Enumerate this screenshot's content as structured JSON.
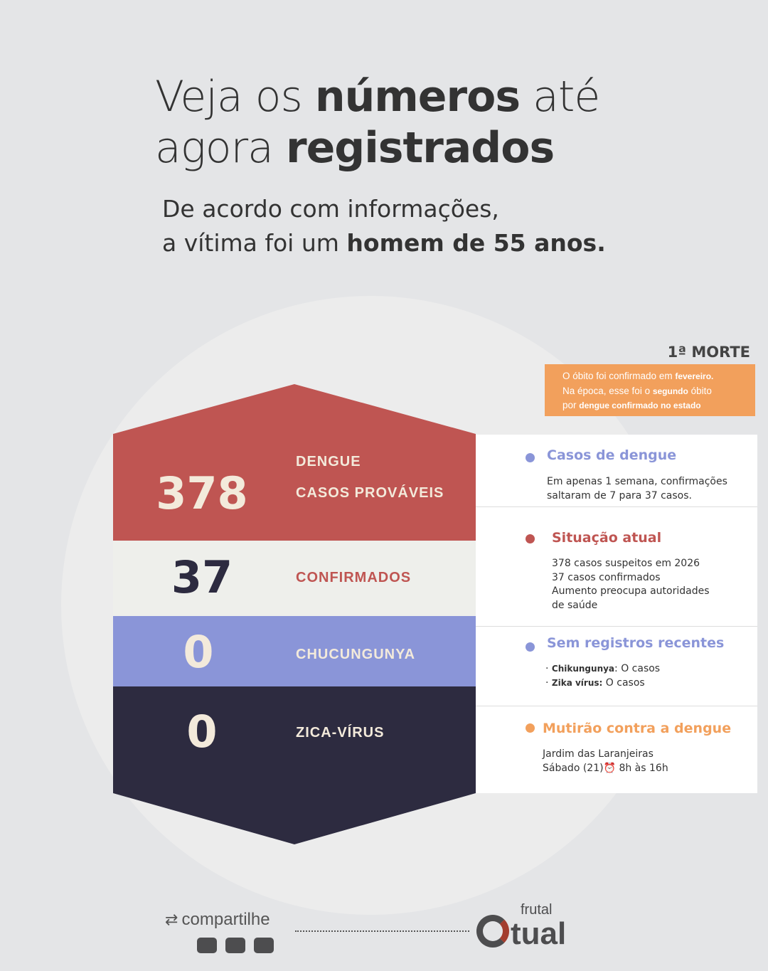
{
  "title": {
    "line1_normal": "Veja os ",
    "line1_bold": "números",
    "line1_end": " até",
    "line2_normal": "agora ",
    "line2_bold": "registrados"
  },
  "subtitle": {
    "line1": "De acordo com informações,",
    "line2_normal": "a vítima foi um ",
    "line2_bold": "homem de 55 anos."
  },
  "death": {
    "label": "1ª MORTE",
    "t1": "O óbito foi confirmado em ",
    "b1": "fevereiro.",
    "t2": "Na época, esse foi o ",
    "b2": "segundo",
    "t3": " óbito",
    "t4": "por ",
    "b3": "dengue confirmado no estado"
  },
  "stats": [
    {
      "number": "378",
      "label1": "DENGUE",
      "label2": "CASOS PROVÁVEIS"
    },
    {
      "number": "37",
      "label": "CONFIRMADOS"
    },
    {
      "number": "0",
      "label": "CHUCUNGUNYA"
    },
    {
      "number": "0",
      "label": "ZICA-VÍRUS"
    }
  ],
  "panel": [
    {
      "heading": "Casos de dengue",
      "lines": [
        "Em apenas 1 semana, confirmações",
        "saltaram de 7 para 37 casos."
      ]
    },
    {
      "heading": "Situação atual",
      "lines": [
        "378 casos suspeitos em 2026",
        "37 casos confirmados",
        "Aumento preocupa autoridades",
        "de saúde"
      ]
    },
    {
      "heading": "Sem registros recentes",
      "items": [
        {
          "b": "Chikungunya",
          "t": ": O casos"
        },
        {
          "b": "Zika vírus:",
          "t": " O casos"
        }
      ]
    },
    {
      "heading": "Mutirão contra a dengue",
      "lines": [
        "Jardim das Laranjeiras",
        "Sábado (21)⏰ 8h às 16h"
      ]
    }
  ],
  "footer": {
    "share": "compartilhe",
    "logo_small": "frutal",
    "logo_big": "tual"
  },
  "colors": {
    "red": "#bf5552",
    "cream": "#eeefeb",
    "purple": "#8a95d8",
    "dark": "#2d2b40",
    "orange": "#f2a05c"
  }
}
